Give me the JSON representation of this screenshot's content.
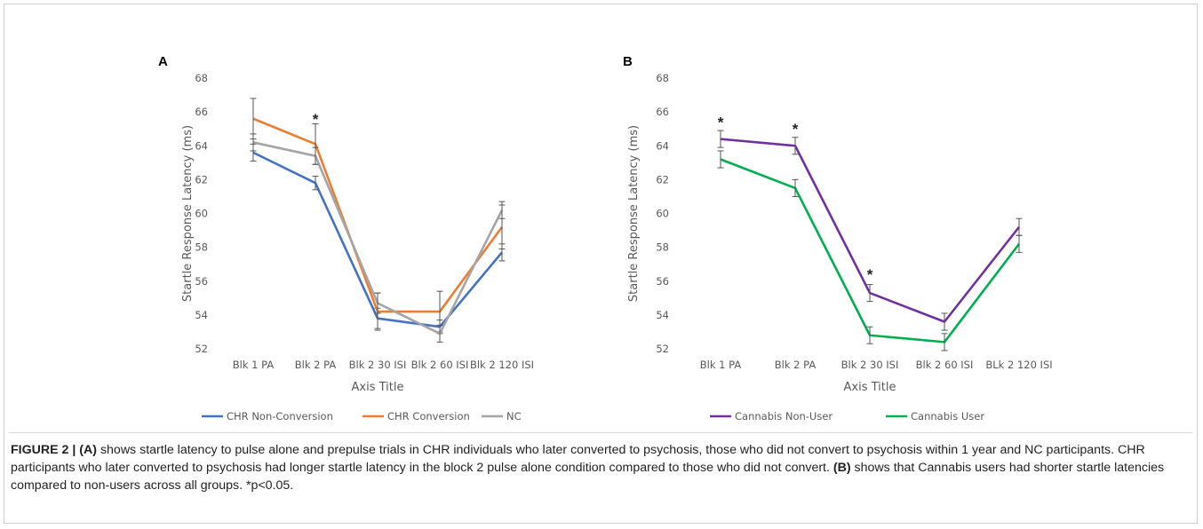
{
  "chart_data": [
    {
      "type": "line",
      "panel_label": "A",
      "categories": [
        "Blk 1 PA",
        "Blk 2 PA",
        "Blk 2 30 ISI",
        "Blk 2 60 ISI",
        "Blk 2 120 ISI"
      ],
      "series": [
        {
          "name": "CHR Non-Conversion",
          "color": "#4472C4",
          "values": [
            63.6,
            61.8,
            53.8,
            53.3,
            57.7
          ],
          "errors": [
            0.5,
            0.4,
            0.6,
            0.4,
            0.5
          ]
        },
        {
          "name": "CHR Conversion",
          "color": "#ED7D31",
          "values": [
            65.6,
            64.1,
            54.2,
            54.2,
            59.2
          ],
          "errors": [
            1.2,
            1.2,
            1.1,
            1.2,
            1.3
          ]
        },
        {
          "name": "NC",
          "color": "#A5A5A5",
          "values": [
            64.2,
            63.4,
            54.7,
            52.9,
            60.2
          ],
          "errors": [
            0.5,
            0.5,
            0.6,
            0.5,
            0.5
          ]
        }
      ],
      "significance": [
        {
          "category": "Blk 2 PA",
          "label": "*",
          "value": 65.6
        }
      ],
      "xlabel": "Axis Title",
      "ylabel": "Startle Response Latency (ms)",
      "ylim": [
        52,
        68
      ],
      "yticks": [
        "52",
        "54",
        "56",
        "58",
        "60",
        "62",
        "64",
        "66",
        "68"
      ],
      "grid": false,
      "legend_position": "bottom"
    },
    {
      "type": "line",
      "panel_label": "B",
      "categories": [
        "Blk 1 PA",
        "Blk 2 PA",
        "Blk 2 30 ISI",
        "Blk 2 60 ISI",
        "BLk 2 120 ISI"
      ],
      "series": [
        {
          "name": "Cannabis Non-User",
          "color": "#7030A0",
          "values": [
            64.4,
            64.0,
            55.3,
            53.6,
            59.2
          ],
          "errors": [
            0.5,
            0.5,
            0.5,
            0.5,
            0.5
          ]
        },
        {
          "name": "Cannabis User",
          "color": "#00B050",
          "values": [
            63.2,
            61.5,
            52.8,
            52.4,
            58.2
          ],
          "errors": [
            0.5,
            0.5,
            0.5,
            0.5,
            0.5
          ]
        }
      ],
      "significance": [
        {
          "category": "Blk 1 PA",
          "label": "*",
          "value": 65.4
        },
        {
          "category": "Blk 2 PA",
          "label": "*",
          "value": 65.0
        },
        {
          "category": "Blk 2 30 ISI",
          "label": "*",
          "value": 56.4
        }
      ],
      "xlabel": "Axis Title",
      "ylabel": "Startle Response Latency (ms)",
      "ylim": [
        52,
        68
      ],
      "yticks": [
        "52",
        "54",
        "56",
        "58",
        "60",
        "62",
        "64",
        "66",
        "68"
      ],
      "grid": false,
      "legend_position": "bottom"
    }
  ],
  "caption": {
    "figure_label": "FIGURE 2 |",
    "label_a": "(A)",
    "text_a": " shows startle latency to pulse alone and prepulse trials in CHR individuals who later converted to psychosis, those who did not convert to psychosis within 1 year and NC participants. CHR participants who later converted to psychosis had longer startle latency in the block 2 pulse alone condition compared to those who did not convert. ",
    "label_b": "(B)",
    "text_b": " shows that Cannabis users had shorter startle latencies compared to non-users across all groups. *p<0.05."
  }
}
